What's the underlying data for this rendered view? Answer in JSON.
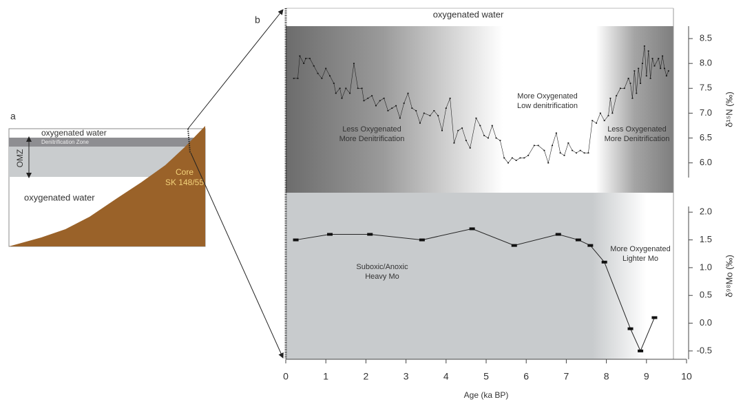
{
  "panel_a": {
    "label": "a",
    "top_water": "oxygenated water",
    "denitrification": "Denitrification Zone",
    "omz": "OMZ",
    "core": [
      "Core",
      "SK 148/55"
    ],
    "bottom_water": "oxygenated water"
  },
  "panel_b": {
    "label": "b",
    "top_band": "oxygenated water"
  },
  "chart_data": [
    {
      "type": "line",
      "color": "#222222",
      "ylabel": "δ¹⁵N (‰)",
      "annotations": [
        [
          "Less Oxygenated",
          "More Denitrification"
        ],
        [
          "More Oxygenated",
          "Low denitrification"
        ],
        [
          "Less Oxygenated",
          "More Denitrification"
        ]
      ],
      "xlim": [
        0,
        10
      ],
      "ylim": [
        5.4,
        8.75
      ],
      "yticks": [
        {
          "value": 6,
          "label": "6.0"
        },
        6.5,
        {
          "value": 7,
          "label": "7.0"
        },
        7.5,
        {
          "value": 8,
          "label": "8.0"
        },
        8.5
      ],
      "series": [
        {
          "x": [
            0.2,
            0.3,
            0.35,
            0.45,
            0.5,
            0.6,
            0.7,
            0.8,
            0.9,
            1.0,
            1.1,
            1.2,
            1.25,
            1.35,
            1.4,
            1.5,
            1.6,
            1.7,
            1.8,
            1.9,
            1.95,
            2.05,
            2.15,
            2.25,
            2.35,
            2.45,
            2.55,
            2.65,
            2.75,
            2.85,
            2.95,
            3.05,
            3.15,
            3.25,
            3.35,
            3.45,
            3.6,
            3.7,
            3.8,
            3.9,
            4.0,
            4.1,
            4.2,
            4.3,
            4.4,
            4.5,
            4.6,
            4.75,
            4.85,
            4.95,
            5.05,
            5.15,
            5.25,
            5.35,
            5.45,
            5.55,
            5.65,
            5.75,
            5.85,
            5.95,
            6.05,
            6.2,
            6.3,
            6.45,
            6.55,
            6.65,
            6.75,
            6.85,
            6.95,
            7.05,
            7.15,
            7.25,
            7.35,
            7.45,
            7.55,
            7.65,
            7.75,
            7.85,
            7.95,
            8.05,
            8.1,
            8.15,
            8.25,
            8.35,
            8.45,
            8.55,
            8.6,
            8.65,
            8.7,
            8.75,
            8.8,
            8.85,
            8.9,
            8.95,
            9.0,
            9.05,
            9.1,
            9.15,
            9.2,
            9.3,
            9.35,
            9.4,
            9.45,
            9.5,
            9.55
          ],
          "values": [
            7.7,
            7.7,
            8.15,
            8.0,
            8.1,
            8.1,
            7.95,
            7.8,
            7.7,
            7.9,
            7.75,
            7.6,
            7.4,
            7.5,
            7.3,
            7.5,
            7.4,
            8.0,
            7.5,
            7.5,
            7.25,
            7.3,
            7.35,
            7.15,
            7.25,
            7.3,
            7.05,
            7.1,
            7.15,
            6.9,
            7.2,
            7.4,
            7.1,
            7.05,
            6.8,
            7.0,
            6.95,
            7.05,
            6.95,
            6.65,
            7.1,
            7.3,
            6.4,
            6.65,
            6.7,
            6.45,
            6.3,
            6.9,
            6.75,
            6.55,
            6.5,
            6.75,
            6.5,
            6.45,
            6.1,
            6.0,
            6.1,
            6.05,
            6.1,
            6.1,
            6.15,
            6.35,
            6.35,
            6.25,
            6.0,
            6.35,
            6.6,
            6.2,
            6.15,
            6.4,
            6.25,
            6.2,
            6.25,
            6.2,
            6.2,
            6.85,
            6.8,
            7.0,
            6.85,
            6.95,
            7.3,
            7.0,
            7.35,
            7.5,
            7.5,
            7.7,
            7.6,
            7.3,
            7.85,
            7.4,
            7.9,
            7.6,
            8.0,
            8.35,
            7.75,
            8.25,
            7.7,
            8.1,
            7.95,
            8.1,
            7.9,
            8.15,
            7.9,
            7.75,
            7.85
          ]
        }
      ]
    },
    {
      "type": "line",
      "color": "#222222",
      "ylabel": "δ⁹⁸Mo (‰)",
      "xlabel": "Age (ka BP)",
      "annotations": [
        [
          "Suboxic/Anoxic",
          "Heavy Mo"
        ],
        [
          "More Oxygenated",
          "Lighter Mo"
        ]
      ],
      "xlim": [
        0,
        10
      ],
      "xticks": [
        0,
        1,
        2,
        3,
        4,
        5,
        6,
        7,
        8,
        9,
        10
      ],
      "ylim": [
        -0.65,
        2.35
      ],
      "yticks": [
        -0.5,
        {
          "value": 0,
          "label": "0.0"
        },
        0.5,
        {
          "value": 1,
          "label": "1.0"
        },
        1.5,
        {
          "value": 2,
          "label": "2.0"
        }
      ],
      "series": [
        {
          "x": [
            0.25,
            1.1,
            2.1,
            3.4,
            4.65,
            5.7,
            6.8,
            7.3,
            7.6,
            7.95,
            8.6,
            8.85,
            9.2
          ],
          "values": [
            1.5,
            1.6,
            1.6,
            1.5,
            1.7,
            1.4,
            1.6,
            1.5,
            1.4,
            1.1,
            -0.1,
            -0.5,
            0.1
          ]
        }
      ]
    }
  ]
}
